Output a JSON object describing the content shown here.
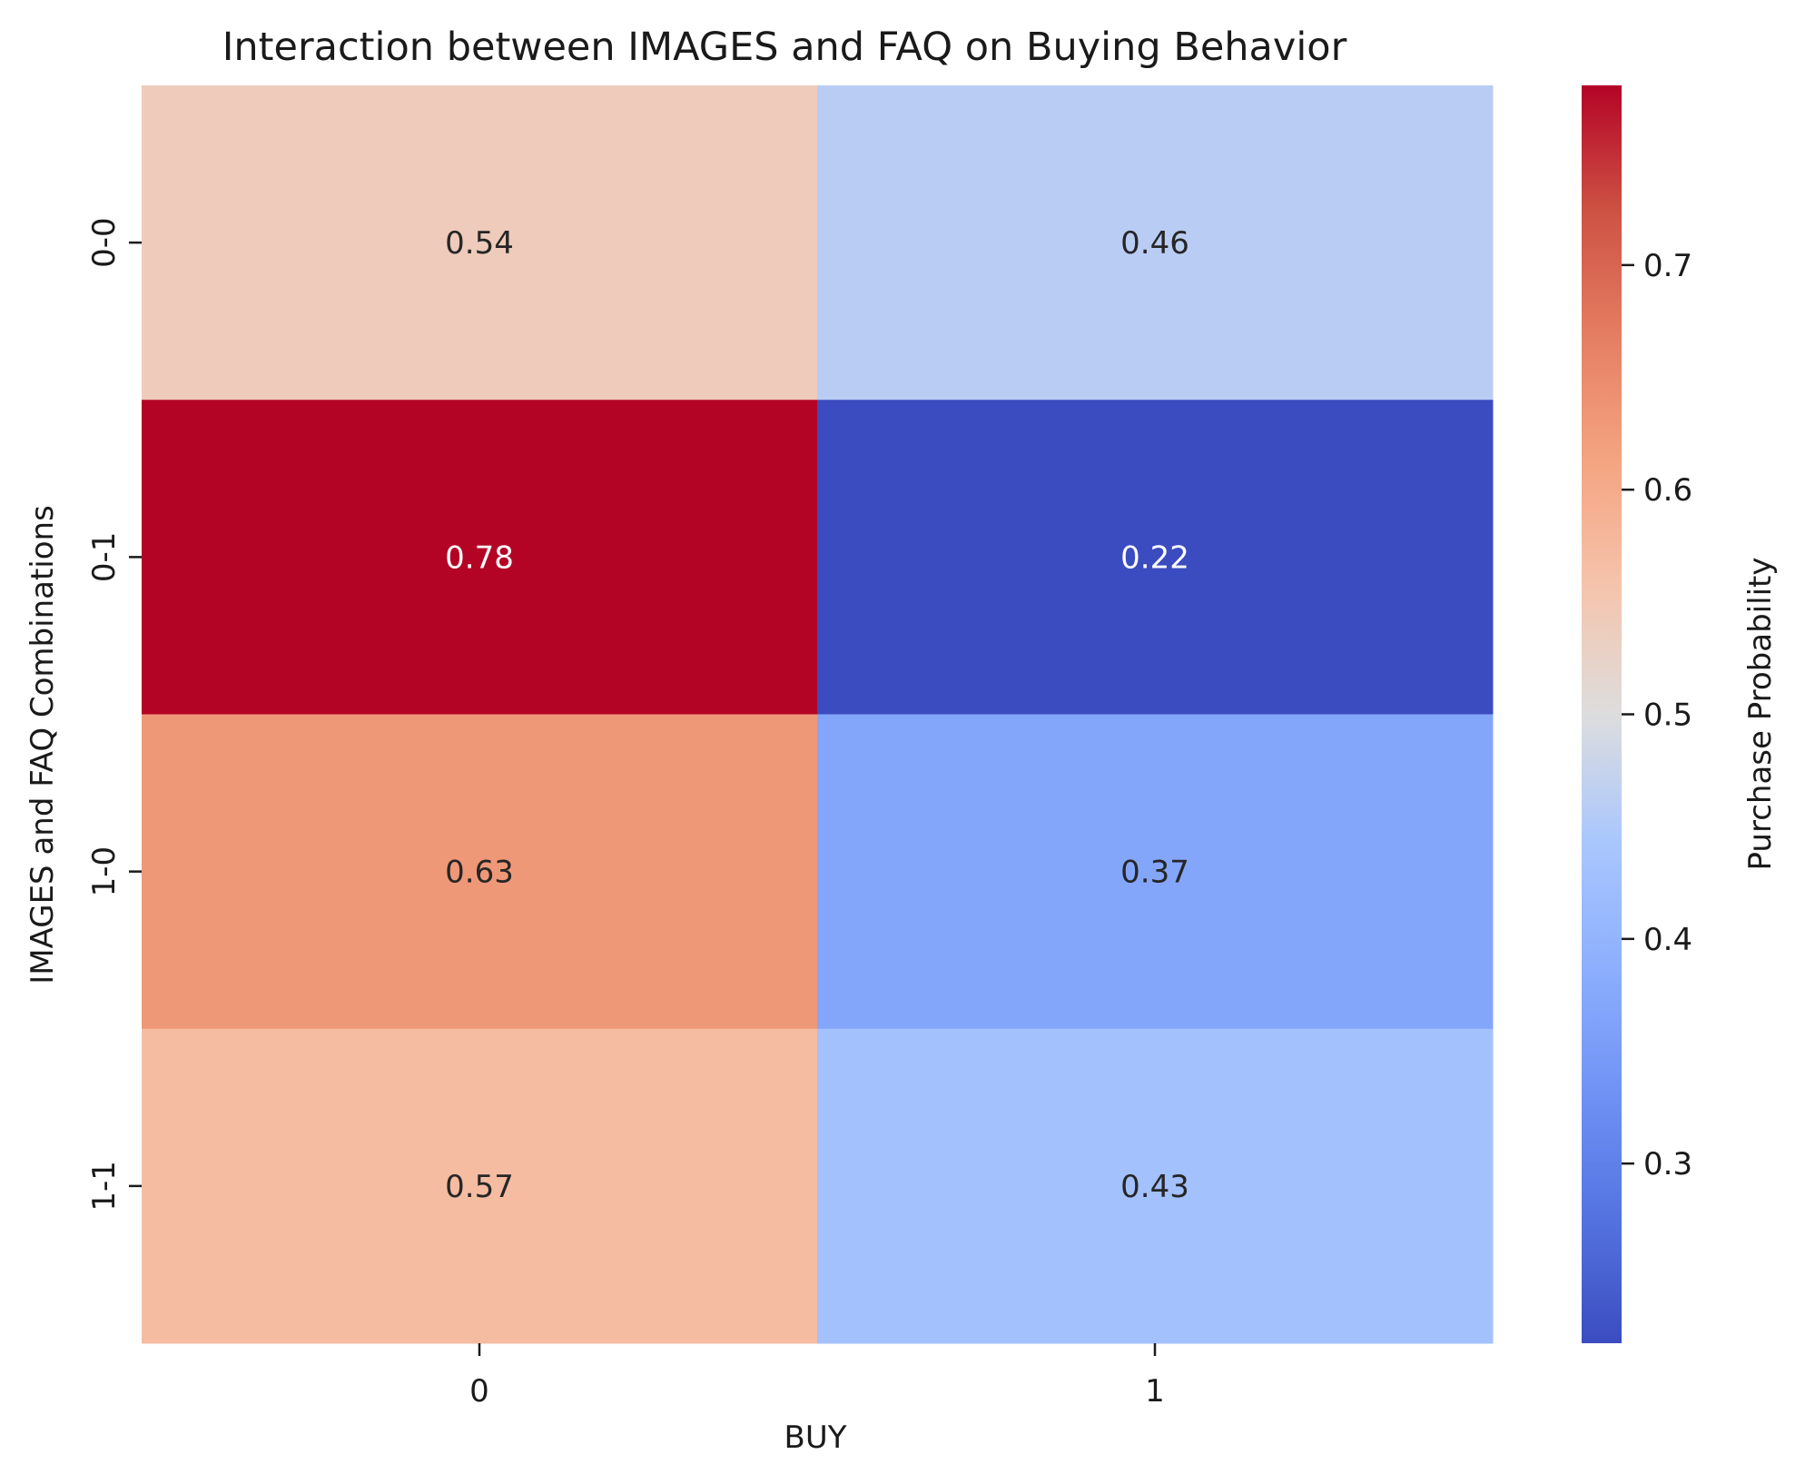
{
  "chart_data": {
    "type": "heatmap",
    "title": "Interaction between IMAGES and FAQ on Buying Behavior",
    "xlabel": "BUY",
    "ylabel": "IMAGES and FAQ Combinations",
    "x_categories": [
      "0",
      "1"
    ],
    "y_categories": [
      "0-0",
      "0-1",
      "1-0",
      "1-1"
    ],
    "values": [
      [
        0.54,
        0.46
      ],
      [
        0.78,
        0.22
      ],
      [
        0.63,
        0.37
      ],
      [
        0.57,
        0.43
      ]
    ],
    "colormap": "coolwarm",
    "colorbar": {
      "label": "Purchase Probability",
      "range": [
        0.22,
        0.78
      ],
      "ticks": [
        "0.3",
        "0.4",
        "0.5",
        "0.6",
        "0.7"
      ]
    }
  }
}
